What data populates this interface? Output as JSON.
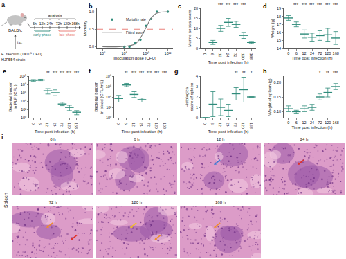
{
  "diagram": {
    "panel_label": "a",
    "host": "BALB/c",
    "route": "i.p.",
    "inoculum": "E. faecium (1×10⁹ CFU)",
    "strain": "HJF554 strain",
    "header": "analysis",
    "timepoints": [
      "6h",
      "12h",
      "24h",
      "72h",
      "120h",
      "168h"
    ],
    "phases": [
      {
        "label": "early phase",
        "timepoints": [
          "6h",
          "12h",
          "24h"
        ]
      },
      {
        "label": "late phase",
        "timepoints": [
          "72h",
          "120h",
          "168h"
        ]
      }
    ]
  },
  "chart_data": [
    {
      "panel_label": "b",
      "type": "scatter",
      "x_label": "Inoculation dose (CFU)",
      "y_label": "Mortality",
      "log": "x",
      "xlim": [
        300000.0,
        3000000000000.0
      ],
      "xticks": [
        {
          "value": 1000000.0,
          "label": "10⁶"
        },
        {
          "value": 100000000.0,
          "label": "10⁸"
        },
        {
          "value": 10000000000.0,
          "label": "10¹⁰"
        },
        {
          "value": 1000000000000.0,
          "label": "10¹²"
        }
      ],
      "ylim": [
        -0.05,
        1.1
      ],
      "yticks": [
        {
          "value": 0,
          "label": "0.0"
        },
        {
          "value": 0.5,
          "label": "0.5"
        },
        {
          "value": 1,
          "label": "1.0"
        }
      ],
      "legend": "upper left",
      "series": [
        {
          "name": "Mortality rate",
          "type": "scatter",
          "marker": "circle",
          "color": "#2e8b7a",
          "x": [
            100000000.0,
            300000000.0,
            1000000000.0,
            3000000000.0,
            10000000000.0,
            30000000000.0,
            100000000000.0,
            1000000000000.0
          ],
          "values": [
            0,
            0,
            0.1,
            0.2,
            0.6,
            0.8,
            1,
            1
          ]
        },
        {
          "name": "Fitted curve",
          "type": "line",
          "line_style": "solid",
          "color": "#777777",
          "x": [
            1000000.0,
            100000000.0,
            1000000000.0,
            3000000000.0,
            10000000000.0,
            30000000000.0,
            100000000000.0,
            1000000000000.0
          ],
          "values": [
            0,
            0.01,
            0.08,
            0.25,
            0.55,
            0.82,
            0.96,
            1
          ]
        },
        {
          "type": "line",
          "line_style": "dashed",
          "color": "#e8736b",
          "x": [
            300000.0,
            3000000000000.0
          ],
          "values": [
            0.5,
            0.5
          ]
        }
      ]
    },
    {
      "panel_label": "c",
      "type": "dot",
      "x_label": "Time post infection (h)",
      "y_label": "Murine sepsis score",
      "categories": [
        "0",
        "6",
        "12",
        "24",
        "72",
        "120",
        "168"
      ],
      "values": [
        0,
        3,
        10,
        13,
        12,
        6.5,
        3
      ],
      "lower": [
        0,
        2,
        8.5,
        11,
        10.5,
        5,
        2.5
      ],
      "upper": [
        0,
        4,
        11.5,
        15,
        13.5,
        8,
        3.5
      ],
      "significance": [
        null,
        null,
        "***",
        "***",
        "***",
        "***",
        null
      ],
      "ylim": [
        0,
        20
      ],
      "yticks": [
        0,
        5,
        10,
        15,
        20
      ],
      "color": "#2e8b7a",
      "marker": "dash"
    },
    {
      "panel_label": "d",
      "type": "dot",
      "x_label": "Time post infection (h)",
      "y_label": "Weight (g)",
      "categories": [
        "0",
        "6",
        "12",
        "24",
        "72",
        "120",
        "168"
      ],
      "values": [
        17.8,
        17.0,
        15.8,
        15.4,
        15.6,
        15.7,
        15.3
      ],
      "lower": [
        17.5,
        16.7,
        15.3,
        14.9,
        15.0,
        14.9,
        14.5
      ],
      "upper": [
        18.1,
        17.3,
        16.3,
        15.9,
        16.2,
        16.5,
        16.1
      ],
      "significance": [
        null,
        "***",
        "***",
        "***",
        "***",
        "***",
        "***"
      ],
      "ylim": [
        14,
        19
      ],
      "yticks": [
        14,
        15,
        16,
        17,
        18,
        19
      ],
      "color": "#2e8b7a",
      "marker": "dash"
    },
    {
      "panel_label": "e",
      "type": "dot",
      "x_label": "Time post infection (h)",
      "y_label": "Bacterial burden in PLF (CFU)",
      "log": "y",
      "categories": [
        "0",
        "6",
        "12",
        "24",
        "72",
        "120",
        "168"
      ],
      "values": [
        1000000000.0,
        1200000000.0,
        3000000.0,
        1000000.0,
        2000,
        300,
        20
      ],
      "lower": [
        600000000.0,
        800000000.0,
        500000.0,
        200000.0,
        800,
        50,
        5
      ],
      "upper": [
        1500000000.0,
        1800000000.0,
        10000000.0,
        5000000.0,
        5000,
        1000,
        50
      ],
      "significance": [
        null,
        null,
        "**",
        "***",
        "***",
        "***",
        "***"
      ],
      "ylim": [
        1,
        10000000000.0
      ],
      "yticks": [
        {
          "value": 1,
          "label": "10⁰"
        },
        {
          "value": 100,
          "label": "10²"
        },
        {
          "value": 10000,
          "label": "10⁴"
        },
        {
          "value": 1000000.0,
          "label": "10⁶"
        },
        {
          "value": 100000000.0,
          "label": "10⁸"
        },
        {
          "value": 10000000000.0,
          "label": "10¹⁰"
        }
      ],
      "color": "#2e8b7a",
      "marker": "dash"
    },
    {
      "panel_label": "f",
      "type": "dot",
      "x_label": "Time post infection (h)",
      "y_label": "Bacterial burden in blood (CFU/mL)",
      "log": "y",
      "categories": [
        "0",
        "6",
        "12",
        "24",
        "72",
        "120",
        "168"
      ],
      "values": [
        5000,
        2000000,
        30000,
        3000,
        null,
        null,
        null
      ],
      "lower": [
        1000,
        1000000,
        8000,
        1000,
        null,
        null,
        null
      ],
      "upper": [
        20000,
        4000000,
        100000,
        6000,
        null,
        null,
        null
      ],
      "significance": [
        null,
        "**",
        "***",
        "***",
        "***",
        "***",
        "***"
      ],
      "ylim": [
        1,
        100000000.0
      ],
      "yticks": [
        {
          "value": 1,
          "label": "10⁰"
        },
        {
          "value": 100,
          "label": "10²"
        },
        {
          "value": 10000,
          "label": "10⁴"
        },
        {
          "value": 1000000.0,
          "label": "10⁶"
        },
        {
          "value": 100000000.0,
          "label": "10⁸"
        }
      ],
      "color": "#2e8b7a",
      "marker": "dash"
    },
    {
      "panel_label": "g",
      "type": "dot",
      "x_label": "Time post infection (h)",
      "y_label": "Histological score of spleen",
      "categories": [
        "0",
        "6",
        "12",
        "24",
        "72",
        "120",
        "168"
      ],
      "values": [
        0,
        1.3,
        1.0,
        0.7,
        2.3,
        2.7,
        2.0
      ],
      "lower": [
        0,
        0.1,
        0.2,
        0.1,
        1.7,
        1.5,
        2.0
      ],
      "upper": [
        0,
        2.5,
        1.8,
        1.3,
        2.9,
        3.9,
        2.0
      ],
      "significance": [
        null,
        null,
        null,
        null,
        "**",
        "**",
        "*"
      ],
      "ylim": [
        0,
        4
      ],
      "yticks": [
        0,
        1,
        2,
        3,
        4
      ],
      "color": "#2e8b7a",
      "marker": "dash"
    },
    {
      "panel_label": "h",
      "type": "dot",
      "x_label": "Time post infection (h)",
      "y_label": "Weight of spleen (g)",
      "categories": [
        "0",
        "6",
        "12",
        "24",
        "72",
        "120",
        "168"
      ],
      "values": [
        0.11,
        0.1,
        0.11,
        0.115,
        0.15,
        0.165,
        0.185
      ],
      "lower": [
        0.1,
        0.095,
        0.1,
        0.105,
        0.14,
        0.15,
        0.175
      ],
      "upper": [
        0.12,
        0.105,
        0.12,
        0.125,
        0.16,
        0.18,
        0.195
      ],
      "significance": [
        null,
        null,
        null,
        null,
        "*",
        "**",
        "***"
      ],
      "ylim": [
        0.08,
        0.22
      ],
      "yticks": [
        {
          "value": 0.1,
          "label": "0.10"
        },
        {
          "value": 0.15,
          "label": "0.15"
        },
        {
          "value": 0.2,
          "label": "0.20"
        }
      ],
      "color": "#2e8b7a",
      "marker": "dash"
    }
  ],
  "histology": {
    "panel_label": "i",
    "tissue": "Spleen",
    "images": [
      {
        "label": "0 h",
        "colors": []
      },
      {
        "label": "6 h",
        "colors": []
      },
      {
        "label": "12 h",
        "colors": [
          "#3a7bd5"
        ]
      },
      {
        "label": "24 h",
        "colors": [
          "#e0302a"
        ]
      },
      {
        "label": "72 h",
        "colors": [
          "#f08c2a",
          "#e0302a"
        ]
      },
      {
        "label": "120 h",
        "colors": [
          "#f5c518",
          "#f08c2a"
        ]
      },
      {
        "label": "168 h",
        "colors": [
          "#f08c2a"
        ]
      }
    ]
  }
}
